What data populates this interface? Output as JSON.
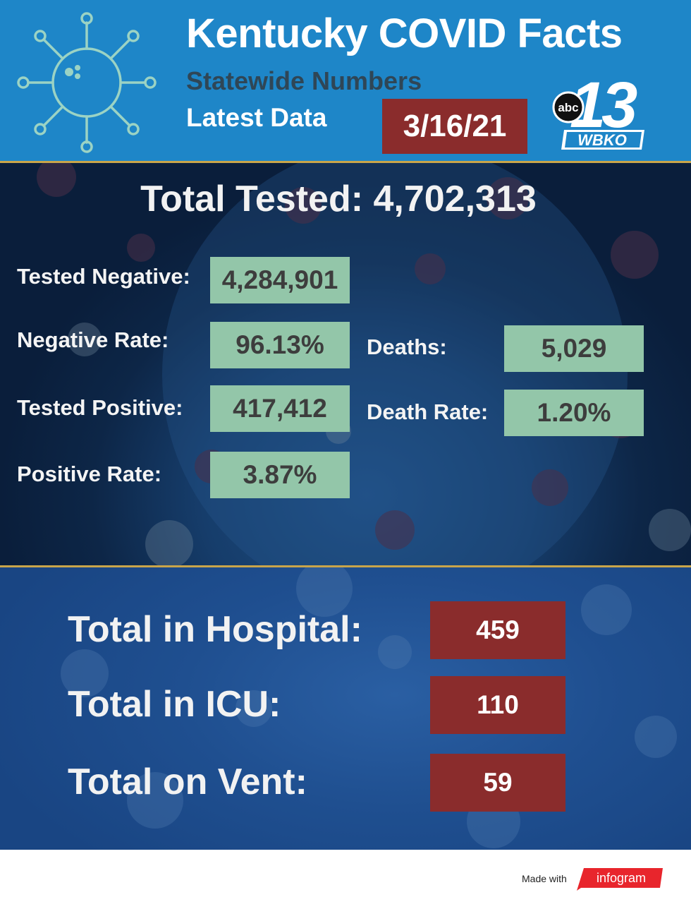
{
  "header": {
    "title": "Kentucky COVID Facts",
    "subtitle": "Statewide Numbers",
    "latest_label": "Latest Data",
    "date": "3/16/21",
    "logo": {
      "network": "abc",
      "channel": "13",
      "call_sign": "WBKO"
    },
    "icon": "virus-icon"
  },
  "tests": {
    "total_label": "Total Tested: 4,702,313",
    "stats": [
      {
        "label": "Tested Negative:",
        "value": "4,284,901"
      },
      {
        "label": "Negative Rate:",
        "value": "96.13%"
      },
      {
        "label": "Tested Positive:",
        "value": "417,412"
      },
      {
        "label": "Positive Rate:",
        "value": "3.87%"
      },
      {
        "label": "Deaths:",
        "value": "5,029"
      },
      {
        "label": "Death Rate:",
        "value": "1.20%"
      }
    ]
  },
  "hospital": {
    "items": [
      {
        "label": "Total in Hospital:",
        "value": "459"
      },
      {
        "label": "Total in ICU:",
        "value": "110"
      },
      {
        "label": "Total on Vent:",
        "value": "59"
      }
    ]
  },
  "footer": {
    "made_with": "Made with",
    "brand": "infogram"
  },
  "colors": {
    "header_blue": "#1e86c8",
    "dark_navy": "#0d2647",
    "green_box": "#93c6a9",
    "red_box": "#8a2c2c",
    "gold_line": "#c9a54a",
    "infogram_red": "#e8252c"
  }
}
